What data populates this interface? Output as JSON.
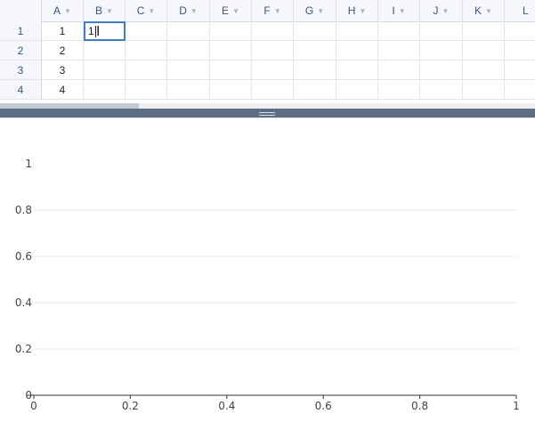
{
  "spreadsheet": {
    "columns": [
      "A",
      "B",
      "C",
      "D",
      "E",
      "F",
      "G",
      "H",
      "I",
      "J",
      "K",
      "L"
    ],
    "rows": [
      {
        "header": "1",
        "a": "1"
      },
      {
        "header": "2",
        "a": "2"
      },
      {
        "header": "3",
        "a": "3"
      },
      {
        "header": "4",
        "a": "4"
      }
    ],
    "active_cell": {
      "address": "B1",
      "value": "1"
    }
  },
  "chart_data": {
    "type": "scatter",
    "title": "",
    "xlabel": "",
    "ylabel": "",
    "series": [],
    "xlim": [
      0,
      1
    ],
    "ylim": [
      0,
      1
    ],
    "x_ticks": [
      "0",
      "0.2",
      "0.4",
      "0.6",
      "0.8",
      "1"
    ],
    "y_ticks": [
      "0",
      "0.2",
      "0.4",
      "0.6",
      "0.8",
      "1"
    ],
    "grid": true
  },
  "colors": {
    "selection": "#3b7ddd",
    "header_text": "#33578a",
    "splitter": "#5b6e83"
  }
}
